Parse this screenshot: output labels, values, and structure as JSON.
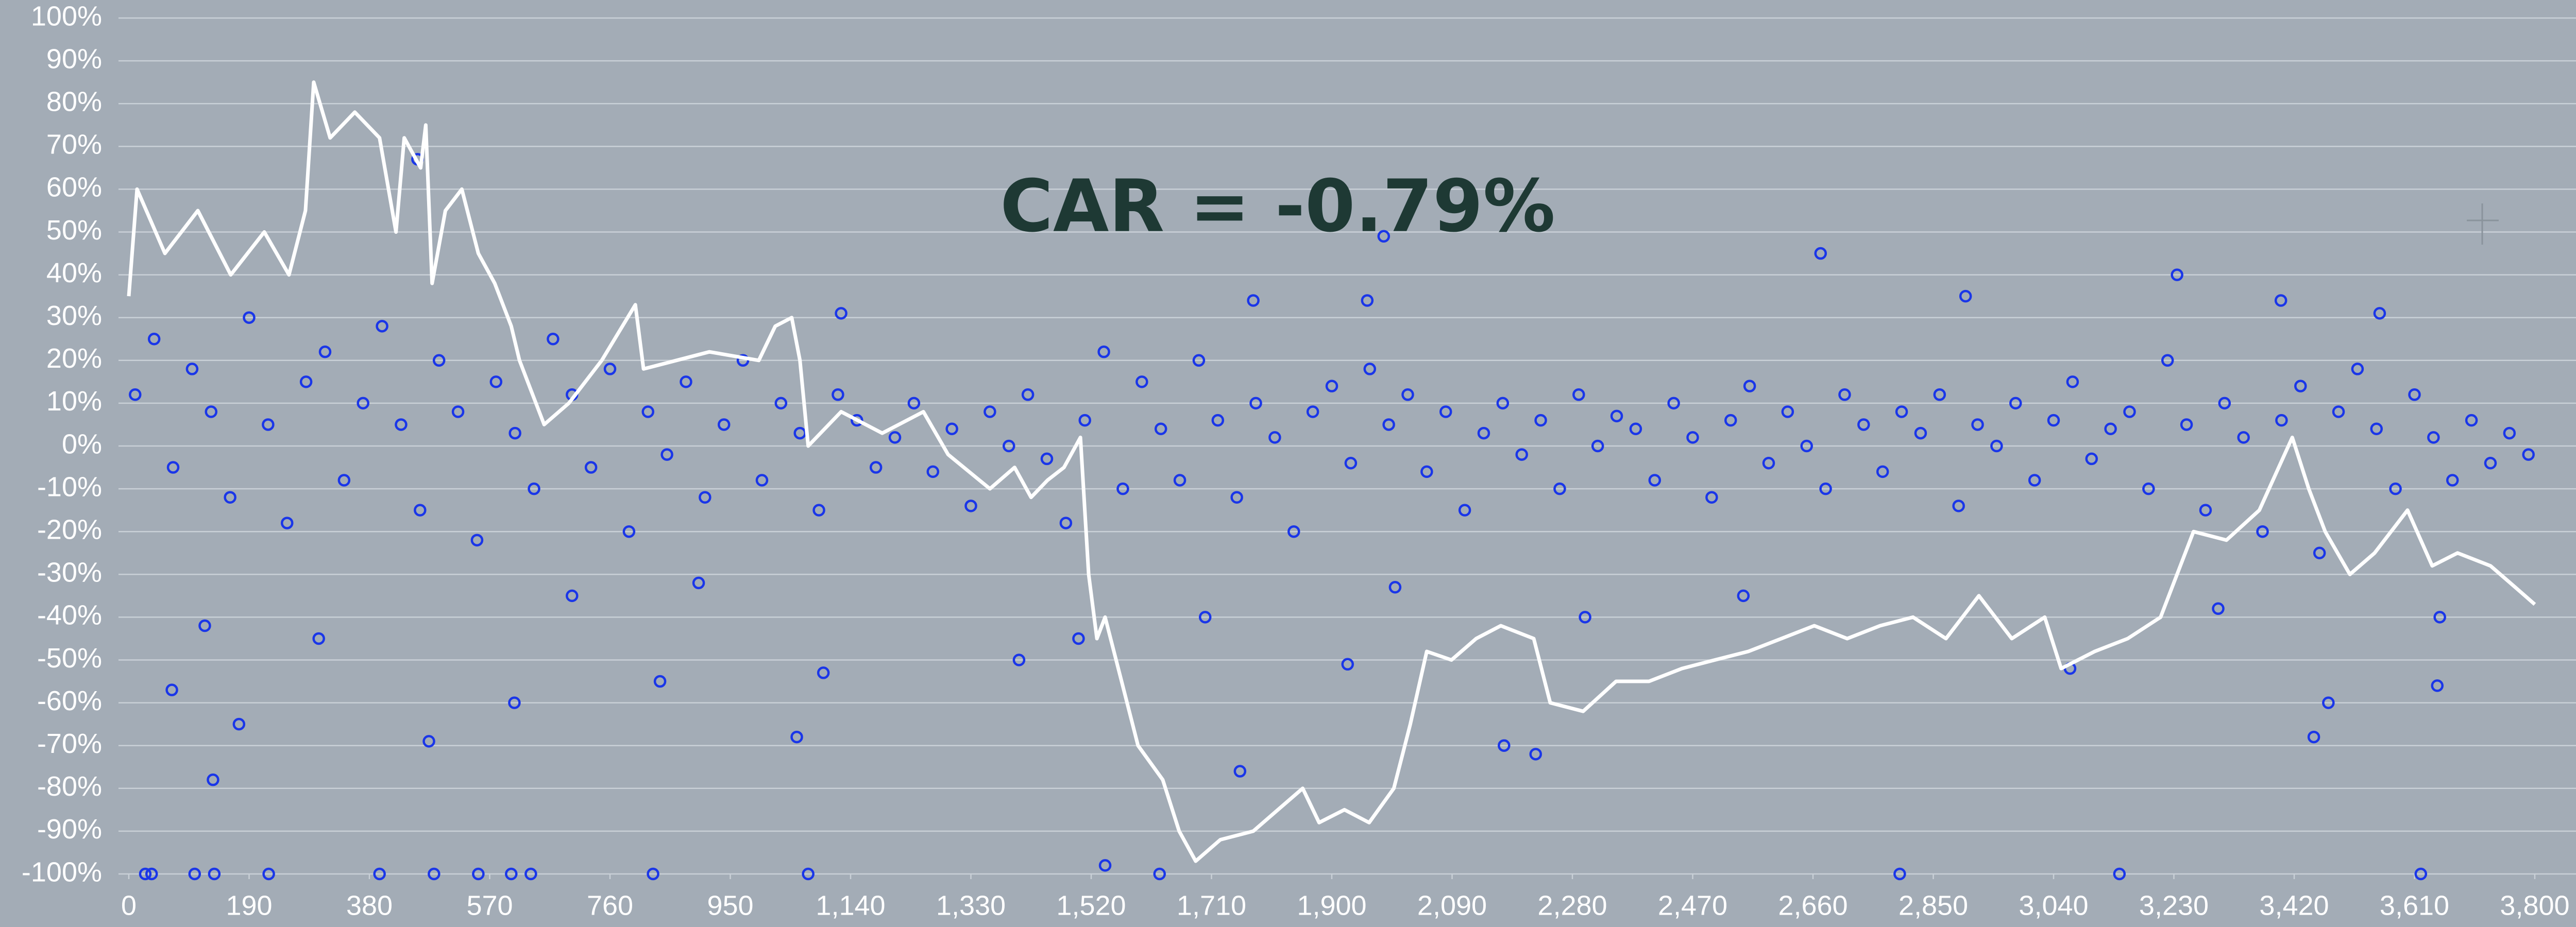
{
  "chart_data": {
    "type": "scatter",
    "annotation": "CAR = -0.79%",
    "background": "#a3acb6",
    "grid": true,
    "xlim": [
      0,
      3800
    ],
    "xticks": [
      0,
      190,
      380,
      570,
      760,
      950,
      {
        "value": 1140,
        "label": "1,140"
      },
      {
        "value": 1330,
        "label": "1,330"
      },
      {
        "value": 1520,
        "label": "1,520"
      },
      {
        "value": 1710,
        "label": "1,710"
      },
      {
        "value": 1900,
        "label": "1,900"
      },
      {
        "value": 2090,
        "label": "2,090"
      },
      {
        "value": 2280,
        "label": "2,280"
      },
      {
        "value": 2470,
        "label": "2,470"
      },
      {
        "value": 2660,
        "label": "2,660"
      },
      {
        "value": 2850,
        "label": "2,850"
      },
      {
        "value": 3040,
        "label": "3,040"
      },
      {
        "value": 3230,
        "label": "3,230"
      },
      {
        "value": 3420,
        "label": "3,420"
      },
      {
        "value": 3610,
        "label": "3,610"
      },
      {
        "value": 3800,
        "label": "3,800"
      }
    ],
    "ylim": [
      -100,
      100
    ],
    "yticks": [
      {
        "value": 100,
        "label": "100%"
      },
      {
        "value": 90,
        "label": "90%"
      },
      {
        "value": 80,
        "label": "80%"
      },
      {
        "value": 70,
        "label": "70%"
      },
      {
        "value": 60,
        "label": "60%"
      },
      {
        "value": 50,
        "label": "50%"
      },
      {
        "value": 40,
        "label": "40%"
      },
      {
        "value": 30,
        "label": "30%"
      },
      {
        "value": 20,
        "label": "20%"
      },
      {
        "value": 10,
        "label": "10%"
      },
      {
        "value": 0,
        "label": "0%"
      },
      {
        "value": -10,
        "label": "-10%"
      },
      {
        "value": -20,
        "label": "-20%"
      },
      {
        "value": -30,
        "label": "-30%"
      },
      {
        "value": -40,
        "label": "-40%"
      },
      {
        "value": -50,
        "label": "-50%"
      },
      {
        "value": -60,
        "label": "-60%"
      },
      {
        "value": -70,
        "label": "-70%"
      },
      {
        "value": -80,
        "label": "-80%"
      },
      {
        "value": -90,
        "label": "-90%"
      },
      {
        "value": -100,
        "label": "-100%"
      }
    ],
    "scatter": {
      "color": "#1a36e8",
      "x": [
        10,
        40,
        70,
        100,
        130,
        160,
        190,
        220,
        250,
        280,
        310,
        340,
        370,
        400,
        430,
        460,
        490,
        520,
        550,
        580,
        610,
        640,
        670,
        700,
        730,
        760,
        790,
        820,
        850,
        880,
        910,
        940,
        970,
        1000,
        1030,
        1060,
        1090,
        1120,
        1150,
        1180,
        1210,
        1240,
        1270,
        1300,
        1330,
        1360,
        1390,
        1420,
        1450,
        1480,
        1510,
        1540,
        1570,
        1600,
        1630,
        1660,
        1690,
        1720,
        1750,
        1780,
        1810,
        1840,
        1870,
        1900,
        1930,
        1960,
        1990,
        2020,
        2050,
        2080,
        2110,
        2140,
        2170,
        2200,
        2230,
        2260,
        2290,
        2320,
        2350,
        2380,
        2410,
        2440,
        2470,
        2500,
        2530,
        2560,
        2590,
        2620,
        2650,
        2680,
        2710,
        2740,
        2770,
        2800,
        2830,
        2860,
        2890,
        2920,
        2950,
        2980,
        3010,
        3040,
        3070,
        3100,
        3130,
        3160,
        3190,
        3220,
        3250,
        3280,
        3310,
        3340,
        3370,
        3400,
        3430,
        3460,
        3490,
        3520,
        3550,
        3580,
        3610,
        3640,
        3670,
        3700,
        3730,
        3760,
        3790,
        26,
        36,
        104,
        135,
        221,
        396,
        482,
        552,
        604,
        635,
        828,
        1073,
        3144,
        3620,
        1542,
        1628,
        2797,
        456,
        1982,
        2672,
        3235,
        2901,
        1776,
        1956,
        1125,
        3555,
        3399,
        133,
        474,
        2222,
        2172,
        1755,
        3451,
        1055,
        174,
        3474,
        609,
        3646,
        68,
        839,
        1925,
        1097,
        1406,
        3066,
        120,
        300,
        700,
        1500,
        1700,
        2300,
        2550,
        3300,
        3650,
        900,
        2000
      ],
      "values": [
        12,
        25,
        -5,
        18,
        8,
        -12,
        30,
        5,
        -18,
        15,
        22,
        -8,
        10,
        28,
        5,
        -15,
        20,
        8,
        -22,
        15,
        3,
        -10,
        25,
        12,
        -5,
        18,
        -20,
        8,
        -2,
        15,
        -12,
        5,
        20,
        -8,
        10,
        3,
        -15,
        12,
        6,
        -5,
        2,
        10,
        -6,
        4,
        -14,
        8,
        0,
        12,
        -3,
        -18,
        6,
        22,
        -10,
        15,
        4,
        -8,
        20,
        6,
        -12,
        10,
        2,
        -20,
        8,
        14,
        -4,
        18,
        5,
        12,
        -6,
        8,
        -15,
        3,
        10,
        -2,
        6,
        -10,
        12,
        0,
        7,
        4,
        -8,
        10,
        2,
        -12,
        6,
        14,
        -4,
        8,
        0,
        -10,
        12,
        5,
        -6,
        8,
        3,
        12,
        -14,
        5,
        0,
        10,
        -8,
        6,
        15,
        -3,
        4,
        8,
        -10,
        20,
        5,
        -15,
        10,
        2,
        -20,
        6,
        14,
        -25,
        8,
        18,
        4,
        -10,
        12,
        2,
        -8,
        6,
        -4,
        3,
        -2,
        -100,
        -100,
        -100,
        -100,
        -100,
        -100,
        -100,
        -100,
        -100,
        -100,
        -100,
        -100,
        -100,
        -100,
        -98,
        -100,
        -100,
        67,
        49,
        45,
        40,
        35,
        34,
        34,
        31,
        31,
        34,
        -78,
        -69,
        -72,
        -70,
        -76,
        -68,
        -68,
        -65,
        -60,
        -60,
        -56,
        -57,
        -55,
        -51,
        -53,
        -50,
        -52,
        -42,
        -45,
        -35,
        -45,
        -40,
        -40,
        -35,
        -38,
        -40,
        -32,
        -33
      ]
    },
    "line": {
      "color": "#ffffff",
      "x": [
        0,
        13,
        57,
        109,
        161,
        214,
        253,
        279,
        292,
        318,
        357,
        396,
        422,
        435,
        461,
        469,
        479,
        500,
        526,
        552,
        578,
        604,
        617,
        656,
        695,
        747,
        800,
        813,
        865,
        917,
        995,
        1021,
        1047,
        1060,
        1073,
        1125,
        1190,
        1255,
        1294,
        1360,
        1399,
        1425,
        1451,
        1477,
        1503,
        1516,
        1529,
        1542,
        1568,
        1594,
        1633,
        1659,
        1685,
        1724,
        1776,
        1815,
        1854,
        1880,
        1920,
        1959,
        1998,
        2024,
        2050,
        2089,
        2128,
        2167,
        2219,
        2245,
        2297,
        2349,
        2401,
        2453,
        2505,
        2558,
        2610,
        2662,
        2714,
        2766,
        2818,
        2870,
        2922,
        2974,
        3026,
        3052,
        3105,
        3157,
        3209,
        3261,
        3313,
        3365,
        3417,
        3443,
        3469,
        3508,
        3547,
        3599,
        3638,
        3678,
        3730,
        3769,
        3800
      ],
      "values": [
        35,
        60,
        45,
        55,
        40,
        50,
        40,
        55,
        85,
        72,
        78,
        72,
        50,
        72,
        65,
        75,
        38,
        55,
        60,
        45,
        38,
        28,
        20,
        5,
        10,
        20,
        33,
        18,
        20,
        22,
        20,
        28,
        30,
        20,
        0,
        8,
        3,
        8,
        -2,
        -10,
        -5,
        -12,
        -8,
        -5,
        2,
        -30,
        -45,
        -40,
        -55,
        -70,
        -78,
        -90,
        -97,
        -92,
        -90,
        -85,
        -80,
        -88,
        -85,
        -88,
        -80,
        -65,
        -48,
        -50,
        -45,
        -42,
        -45,
        -60,
        -62,
        -55,
        -55,
        -52,
        -50,
        -48,
        -45,
        -42,
        -45,
        -42,
        -40,
        -45,
        -35,
        -45,
        -40,
        -52,
        -48,
        -45,
        -40,
        -20,
        -22,
        -15,
        2,
        -10,
        -20,
        -30,
        -25,
        -15,
        -28,
        -25,
        -28,
        -33,
        -37
      ]
    }
  }
}
